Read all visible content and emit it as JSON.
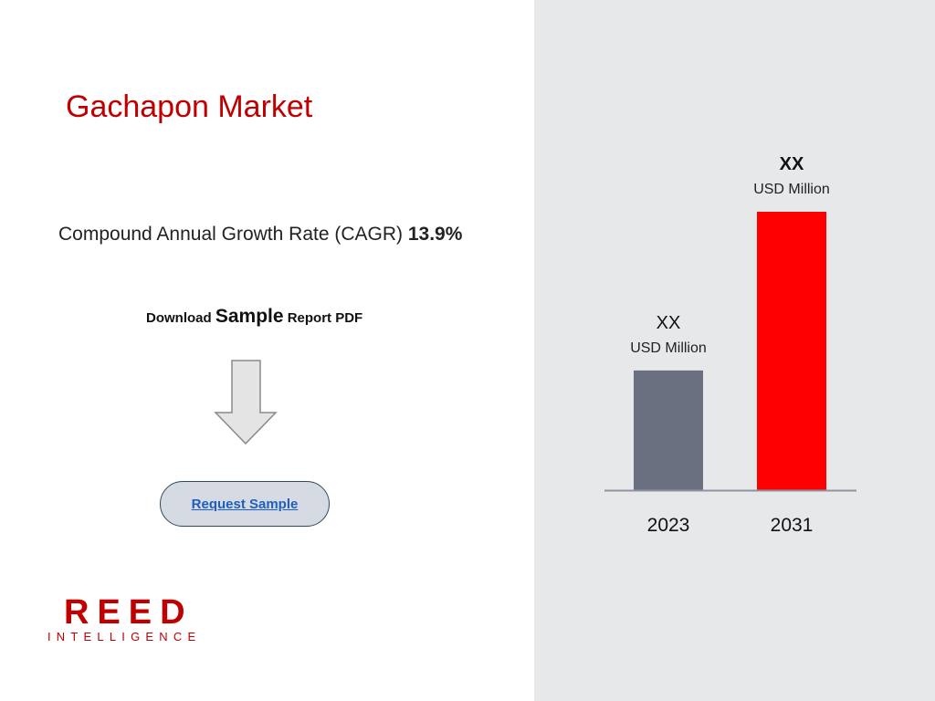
{
  "title": "Gachapon Market",
  "cagr": {
    "label": "Compound Annual Growth Rate (CAGR)",
    "value": "13.9%"
  },
  "download": {
    "prefix": "Download",
    "emphasis": "Sample",
    "suffix": "Report PDF"
  },
  "request_button": {
    "label": "Request Sample"
  },
  "logo": {
    "main": "REED",
    "sub": "INTELLIGENCE"
  },
  "colors": {
    "brand": "#c00000",
    "bar_2023": "#6a7080",
    "bar_2031": "#ff0000",
    "panel": "#e7e8ea",
    "link": "#1f5fbf"
  },
  "chart_data": {
    "type": "bar",
    "categories": [
      "2023",
      "2031"
    ],
    "values": [
      0.43,
      1.0
    ],
    "value_labels": [
      {
        "value": "XX",
        "unit": "USD Million",
        "bold": false
      },
      {
        "value": "XX",
        "unit": "USD Million",
        "bold": true
      }
    ],
    "colors": [
      "#6a7080",
      "#ff0000"
    ],
    "grid": false,
    "legend": "none"
  }
}
